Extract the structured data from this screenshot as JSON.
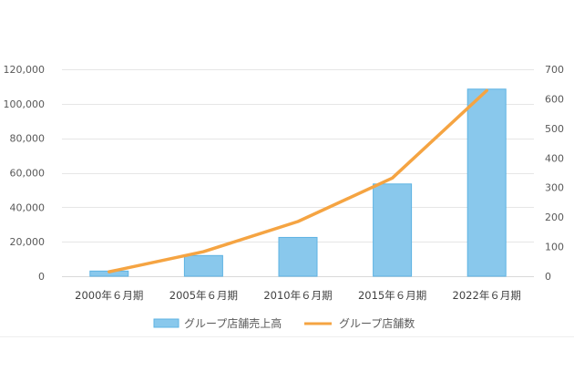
{
  "chart_data": {
    "type": "bar",
    "categories": [
      "2000年６月期",
      "2005年６月期",
      "2010年６月期",
      "2015年６月期",
      "2022年６月期"
    ],
    "series": [
      {
        "name": "グループ店舗売上高",
        "type": "bar",
        "axis": "left",
        "values": [
          3000,
          12000,
          22500,
          53500,
          108500
        ],
        "color": "#89c8ec",
        "border_color": "#5eb3e3"
      },
      {
        "name": "グループ店舗数",
        "type": "line",
        "axis": "right",
        "values": [
          15,
          83,
          185,
          332,
          628
        ],
        "color": "#f5a442"
      }
    ],
    "y_left": {
      "min": 0,
      "max": 120000,
      "step": 20000,
      "ticks": [
        "0",
        "20,000",
        "40,000",
        "60,000",
        "80,000",
        "100,000",
        "120,000"
      ]
    },
    "y_right": {
      "min": 0,
      "max": 700,
      "step": 100,
      "ticks": [
        "0",
        "100",
        "200",
        "300",
        "400",
        "500",
        "600",
        "700"
      ]
    },
    "title": "",
    "xlabel": "",
    "ylabel": "",
    "grid": true,
    "legend": "bottom-center",
    "gridline_color": "#e6e6e6",
    "axis_color": "#d9d9d9"
  }
}
